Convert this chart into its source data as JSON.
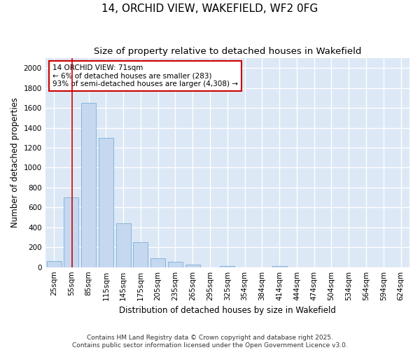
{
  "title": "14, ORCHID VIEW, WAKEFIELD, WF2 0FG",
  "subtitle": "Size of property relative to detached houses in Wakefield",
  "xlabel": "Distribution of detached houses by size in Wakefield",
  "ylabel": "Number of detached properties",
  "categories": [
    "25sqm",
    "55sqm",
    "85sqm",
    "115sqm",
    "145sqm",
    "175sqm",
    "205sqm",
    "235sqm",
    "265sqm",
    "295sqm",
    "325sqm",
    "354sqm",
    "384sqm",
    "414sqm",
    "444sqm",
    "474sqm",
    "504sqm",
    "534sqm",
    "564sqm",
    "594sqm",
    "624sqm"
  ],
  "values": [
    60,
    700,
    1650,
    1300,
    440,
    250,
    90,
    55,
    25,
    0,
    15,
    0,
    0,
    10,
    0,
    0,
    0,
    0,
    0,
    0,
    0
  ],
  "bar_color": "#c5d8f0",
  "bar_edge_color": "#7aaed6",
  "vline_color": "#cc0000",
  "annotation_text": "14 ORCHID VIEW: 71sqm\n← 6% of detached houses are smaller (283)\n93% of semi-detached houses are larger (4,308) →",
  "annotation_box_color": "#ffffff",
  "annotation_box_edge": "#cc0000",
  "ylim": [
    0,
    2100
  ],
  "yticks": [
    0,
    200,
    400,
    600,
    800,
    1000,
    1200,
    1400,
    1600,
    1800,
    2000
  ],
  "background_color": "#dce8f5",
  "grid_color": "#ffffff",
  "footer": "Contains HM Land Registry data © Crown copyright and database right 2025.\nContains public sector information licensed under the Open Government Licence v3.0.",
  "fig_background": "#ffffff",
  "title_fontsize": 11,
  "subtitle_fontsize": 9.5,
  "axis_label_fontsize": 8.5,
  "tick_fontsize": 7.5,
  "annotation_fontsize": 7.5,
  "footer_fontsize": 6.5
}
